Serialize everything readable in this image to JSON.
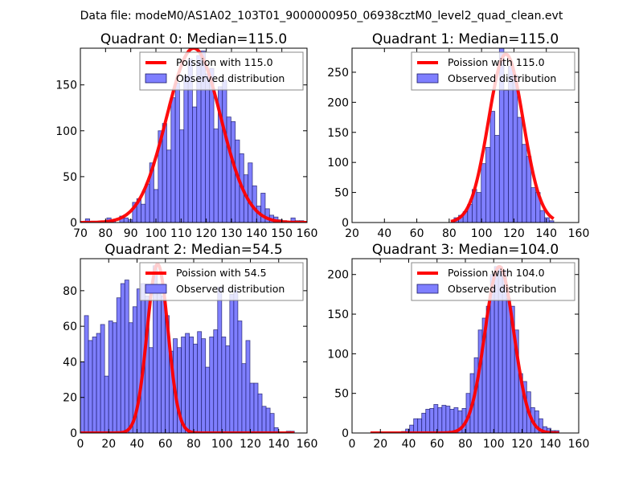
{
  "suptitle": "Data file: modeM0/AS1A02_103T01_9000000950_06938cztM0_level2_quad_clean.evt",
  "colors": {
    "bar_fill": "#7f7fff",
    "bar_edge": "#1a1a66",
    "poisson_line": "#ff0000",
    "legend_border": "#888888"
  },
  "legend": {
    "poisson_prefix": "Poission with",
    "observed": "Observed distribution"
  },
  "chart_data": [
    {
      "type": "bar",
      "title": "Quadrant 0: Median=115.0",
      "median": 115.0,
      "legend_entries": [
        "Poission with 115.0",
        "Observed distribution"
      ],
      "legend_position": "upper-right",
      "xlim": [
        70,
        160
      ],
      "ylim": [
        0,
        190
      ],
      "xticks": [
        70,
        80,
        90,
        100,
        110,
        120,
        130,
        140,
        150,
        160
      ],
      "yticks": [
        0,
        50,
        100,
        150
      ],
      "bin_start": 72,
      "bin_width": 1.7,
      "values": [
        4,
        0,
        0,
        0,
        0,
        5,
        3,
        0,
        7,
        5,
        3,
        22,
        26,
        20,
        42,
        65,
        36,
        100,
        108,
        79,
        136,
        152,
        101,
        160,
        178,
        126,
        182,
        187,
        162,
        168,
        102,
        148,
        155,
        115,
        110,
        90,
        75,
        52,
        65,
        40,
        18,
        32,
        15,
        8,
        6,
        3,
        2,
        0,
        5,
        2,
        2,
        1
      ],
      "poisson": {
        "mean": 115.0,
        "peak": 190
      }
    },
    {
      "type": "bar",
      "title": "Quadrant 1: Median=115.0",
      "median": 115.0,
      "legend_entries": [
        "Poission with 115.0",
        "Observed distribution"
      ],
      "legend_position": "upper-right",
      "xlim": [
        20,
        160
      ],
      "ylim": [
        0,
        290
      ],
      "xticks": [
        20,
        40,
        60,
        80,
        100,
        120,
        140,
        160
      ],
      "yticks": [
        0,
        50,
        100,
        150,
        200,
        250
      ],
      "bin_start": 83,
      "bin_width": 2.8,
      "values": [
        8,
        12,
        18,
        30,
        55,
        50,
        98,
        125,
        185,
        145,
        305,
        220,
        260,
        245,
        175,
        130,
        110,
        58,
        50,
        20,
        8,
        3
      ],
      "poisson": {
        "mean": 115.0,
        "peak": 280
      }
    },
    {
      "type": "bar",
      "title": "Quadrant 2: Median=54.5",
      "median": 54.5,
      "legend_entries": [
        "Poission with 54.5",
        "Observed distribution"
      ],
      "legend_position": "upper-right",
      "xlim": [
        0,
        160
      ],
      "ylim": [
        0,
        98
      ],
      "xticks": [
        0,
        20,
        40,
        60,
        80,
        100,
        120,
        140,
        160
      ],
      "yticks": [
        0,
        20,
        40,
        60,
        80
      ],
      "bin_start": 0,
      "bin_width": 2.85,
      "values": [
        40,
        66,
        52,
        54,
        56,
        61,
        32,
        63,
        62,
        76,
        84,
        86,
        62,
        71,
        81,
        84,
        77,
        48,
        94,
        80,
        77,
        66,
        46,
        53,
        48,
        54,
        56,
        54,
        50,
        57,
        53,
        37,
        54,
        58,
        82,
        54,
        49,
        78,
        80,
        63,
        39,
        52,
        28,
        28,
        22,
        15,
        14,
        11,
        3,
        0,
        0,
        1,
        1
      ],
      "poisson": {
        "mean": 54.5,
        "peak": 95
      }
    },
    {
      "type": "bar",
      "title": "Quadrant 3: Median=104.0",
      "median": 104.0,
      "legend_entries": [
        "Poission with 104.0",
        "Observed distribution"
      ],
      "legend_position": "upper-right",
      "xlim": [
        0,
        160
      ],
      "ylim": [
        0,
        220
      ],
      "xticks": [
        0,
        20,
        40,
        60,
        80,
        100,
        120,
        140,
        160
      ],
      "yticks": [
        0,
        50,
        100,
        150,
        200
      ],
      "bin_start": 15,
      "bin_width": 2.85,
      "values": [
        1,
        0,
        0,
        0,
        0,
        0,
        0,
        2,
        5,
        10,
        18,
        18,
        25,
        30,
        31,
        36,
        32,
        35,
        34,
        30,
        32,
        28,
        31,
        50,
        75,
        95,
        130,
        145,
        160,
        200,
        210,
        210,
        205,
        170,
        160,
        130,
        75,
        65,
        52,
        32,
        28,
        18,
        8,
        6,
        3,
        3
      ],
      "poisson": {
        "mean": 104.0,
        "peak": 210
      }
    }
  ]
}
